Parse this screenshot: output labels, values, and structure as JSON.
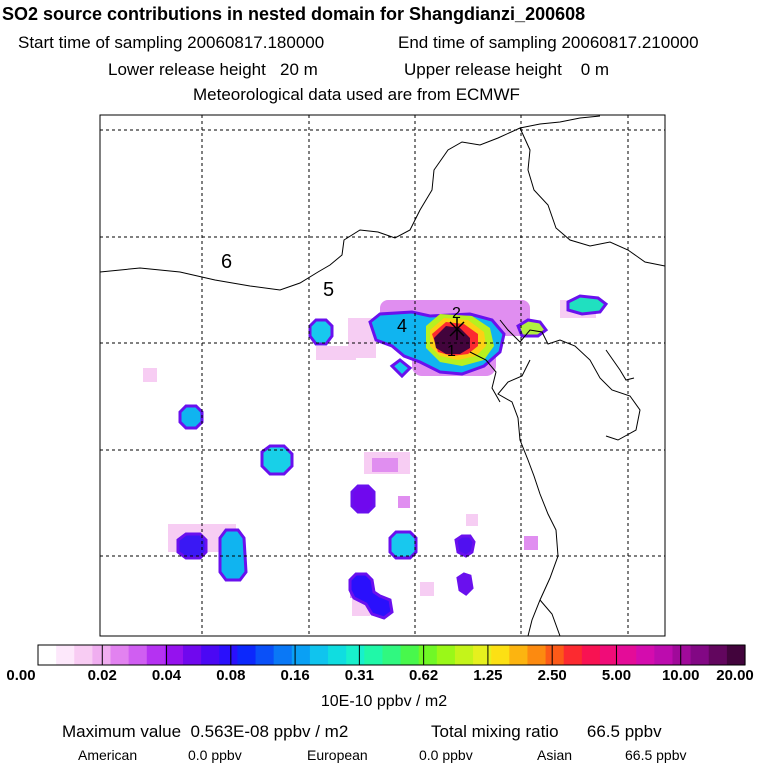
{
  "header": {
    "title": "SO2 source contributions in nested domain for Shangdianzi_200608",
    "start_time": "Start time of sampling 20060817.180000",
    "end_time": "End time of sampling 20060817.210000",
    "lower_release": "Lower release height   20 m",
    "upper_release": "Upper release height    0 m",
    "met_data": "Meteorological data used are from ECMWF"
  },
  "map": {
    "labels": [
      "6",
      "5",
      "4",
      "2",
      "1"
    ],
    "background": "#ffffff",
    "marker": "cross-marker"
  },
  "colorbar": {
    "ticks": [
      "0.00",
      "0.02",
      "0.04",
      "0.08",
      "0.16",
      "0.31",
      "0.62",
      "1.25",
      "2.50",
      "5.00",
      "10.00",
      "20.00"
    ],
    "colors": [
      "#ffffff",
      "#fde8fb",
      "#f8ccf3",
      "#f0aef0",
      "#e282f0",
      "#d05ef2",
      "#b532f2",
      "#9512ee",
      "#7008ee",
      "#4b08f4",
      "#2a10fc",
      "#0c28fc",
      "#0a50f8",
      "#0a78f6",
      "#0aa0f4",
      "#10c4ee",
      "#10dde0",
      "#18f0cc",
      "#20f8a8",
      "#30f880",
      "#48f84c",
      "#70f826",
      "#9af818",
      "#c4f41a",
      "#e6f01e",
      "#fce014",
      "#fcb410",
      "#fc8a10",
      "#fc5a18",
      "#fc2a30",
      "#f81252",
      "#f00c78",
      "#e40c98",
      "#d40cae",
      "#bc0cae",
      "#a00a9a",
      "#820884",
      "#62065e",
      "#42043c"
    ],
    "units": "10E-10 ppbv / m2"
  },
  "summary": {
    "max_value": "Maximum value  0.563E-08 ppbv / m2",
    "total": "Total mixing ratio      66.5 ppbv",
    "american_label": "American",
    "american_value": "0.0 ppbv",
    "european_label": "European",
    "european_value": "0.0 ppbv",
    "asian_label": "Asian",
    "asian_value": "66.5 ppbv"
  }
}
